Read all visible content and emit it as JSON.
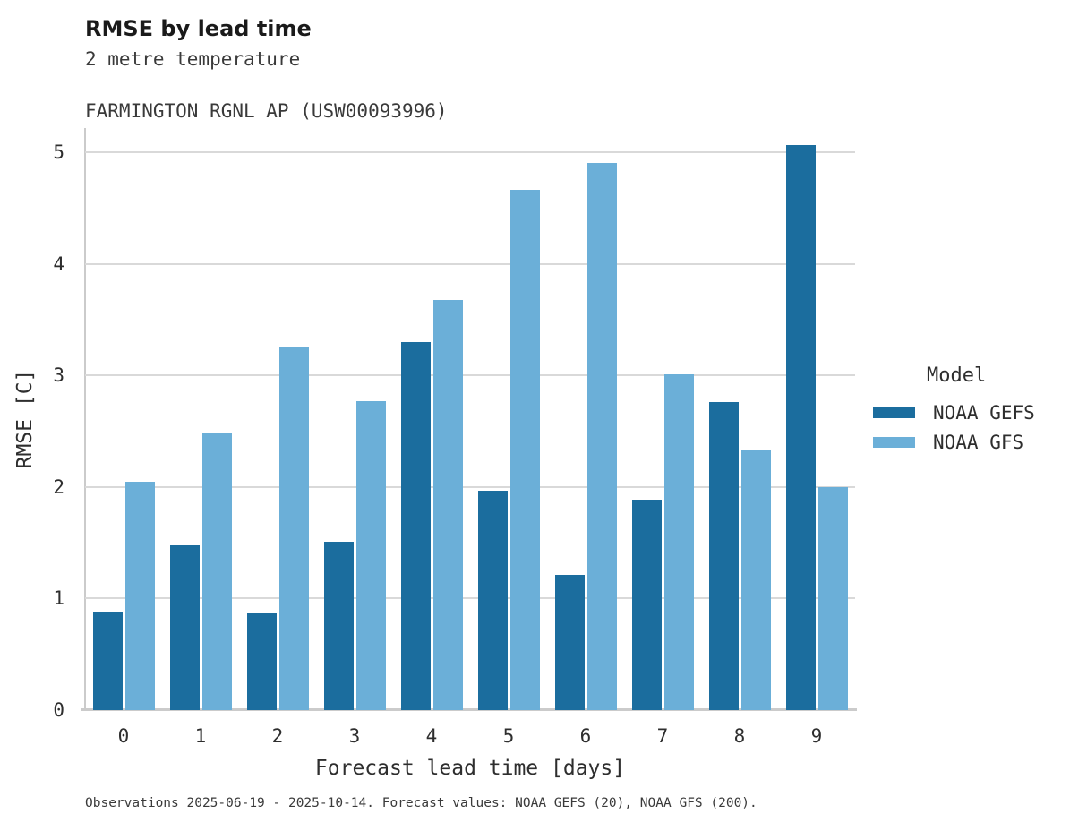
{
  "header": {
    "title": "RMSE by lead time",
    "subtitle_line1": "2 metre temperature",
    "subtitle_line2": "FARMINGTON RGNL AP (USW00093996)"
  },
  "chart_data": {
    "type": "bar",
    "title": "RMSE by lead time",
    "subtitle": [
      "2 metre temperature",
      "FARMINGTON RGNL AP (USW00093996)"
    ],
    "categories": [
      "0",
      "1",
      "2",
      "3",
      "4",
      "5",
      "6",
      "7",
      "8",
      "9"
    ],
    "series": [
      {
        "name": "NOAA GEFS",
        "color": "#1b6d9e",
        "values": [
          0.88,
          1.48,
          0.87,
          1.51,
          3.3,
          1.97,
          1.21,
          1.89,
          2.76,
          5.07
        ]
      },
      {
        "name": "NOAA GFS",
        "color": "#6bafd8",
        "values": [
          2.05,
          2.49,
          3.25,
          2.77,
          3.68,
          4.67,
          4.91,
          3.01,
          2.33,
          2.0
        ]
      }
    ],
    "xlabel": "Forecast lead time [days]",
    "ylabel": "RMSE [C]",
    "ylim": [
      0,
      5.22
    ],
    "yticks": [
      0,
      1,
      2,
      3,
      4,
      5
    ],
    "grid": true,
    "legend_title": "Model",
    "legend_position": "right"
  },
  "legend": {
    "title": "Model",
    "entries": [
      {
        "label": "NOAA GEFS",
        "color": "#1b6d9e"
      },
      {
        "label": "NOAA GFS",
        "color": "#6bafd8"
      }
    ]
  },
  "footer": {
    "note": "Observations 2025-06-19 - 2025-10-14. Forecast values: NOAA GEFS (20), NOAA GFS (200)."
  }
}
